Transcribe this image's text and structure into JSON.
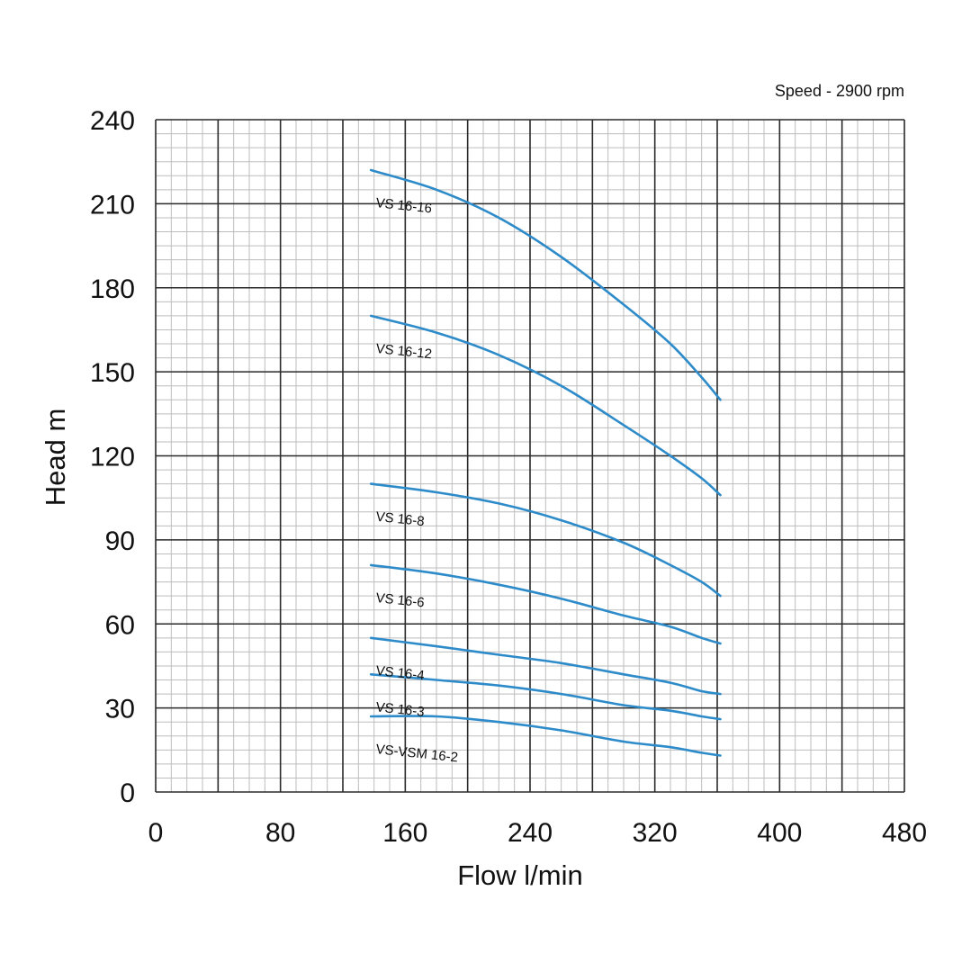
{
  "chart_data": {
    "type": "line",
    "title": "",
    "annotation": "Speed - 2900 rpm",
    "xlabel": "Flow l/min",
    "ylabel": "Head m",
    "xlim": [
      0,
      480
    ],
    "ylim": [
      0,
      240
    ],
    "xticks": [
      "0",
      "80",
      "160",
      "240",
      "320",
      "400",
      "480"
    ],
    "yticks": [
      "0",
      "30",
      "60",
      "90",
      "120",
      "150",
      "180",
      "210",
      "240"
    ],
    "grid": true,
    "line_color": "#2e8bc9",
    "series": [
      {
        "name": "VS 16-16",
        "x": [
          138,
          180,
          220,
          260,
          300,
          330,
          350,
          362
        ],
        "y": [
          222,
          215,
          205,
          191,
          174,
          160,
          148,
          140
        ]
      },
      {
        "name": "VS 16-12",
        "x": [
          138,
          180,
          220,
          260,
          300,
          330,
          350,
          362
        ],
        "y": [
          170,
          164,
          156,
          145,
          131,
          120,
          112,
          106
        ]
      },
      {
        "name": "VS 16-8",
        "x": [
          138,
          180,
          220,
          260,
          300,
          330,
          350,
          362
        ],
        "y": [
          110,
          107,
          103,
          97,
          89,
          81,
          75,
          70
        ]
      },
      {
        "name": "VS 16-6",
        "x": [
          138,
          180,
          220,
          260,
          300,
          330,
          350,
          362
        ],
        "y": [
          81,
          78,
          74,
          69,
          63,
          59,
          55,
          53
        ]
      },
      {
        "name": "VS 16-4",
        "x": [
          138,
          180,
          220,
          260,
          300,
          330,
          350,
          362
        ],
        "y": [
          55,
          52,
          49,
          46,
          42,
          39,
          36,
          35
        ]
      },
      {
        "name": "VS 16-3",
        "x": [
          138,
          180,
          220,
          260,
          300,
          330,
          350,
          362
        ],
        "y": [
          42,
          40,
          38,
          35,
          31,
          29,
          27,
          26
        ]
      },
      {
        "name": "VS-VSM 16-2",
        "x": [
          138,
          180,
          220,
          260,
          300,
          330,
          350,
          362
        ],
        "y": [
          27,
          27,
          25,
          22,
          18,
          16,
          14,
          13
        ]
      }
    ]
  }
}
